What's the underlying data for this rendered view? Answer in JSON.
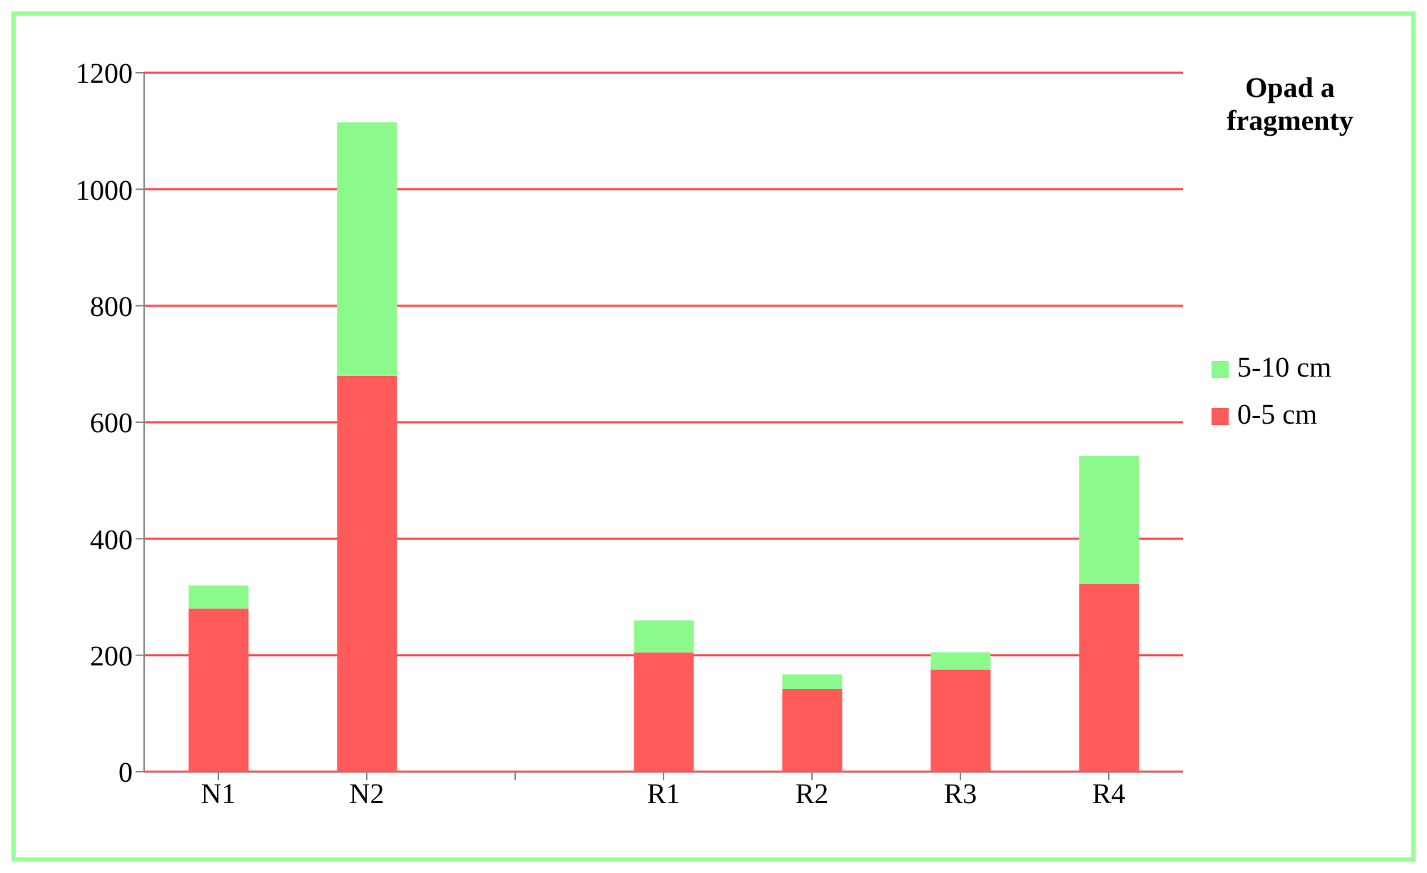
{
  "chart_data": {
    "type": "bar",
    "stacked": true,
    "legend_title": "Opad a\nfragmenty",
    "categories": [
      "N1",
      "N2",
      null,
      "R1",
      "R2",
      "R3",
      "R4"
    ],
    "series": [
      {
        "name": "0-5 cm",
        "color": "#ff5b5b",
        "values": [
          280,
          680,
          null,
          205,
          142,
          175,
          322
        ]
      },
      {
        "name": "5-10 cm",
        "color": "#8cf98c",
        "values": [
          40,
          435,
          null,
          55,
          25,
          30,
          220
        ]
      }
    ],
    "ylim": [
      0,
      1200
    ],
    "yticks": [
      0,
      200,
      400,
      600,
      800,
      1000,
      1200
    ],
    "grid": "y",
    "legend": "right"
  }
}
